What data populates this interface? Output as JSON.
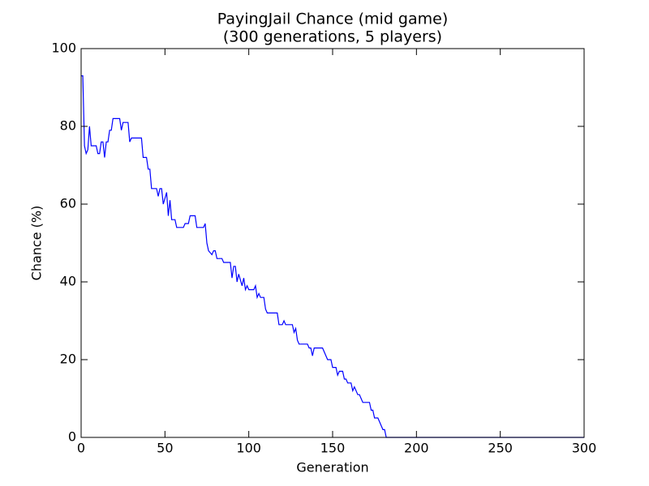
{
  "chart_data": {
    "type": "line",
    "title": "PayingJail Chance (mid game)",
    "subtitle": "(300 generations, 5 players)",
    "x_label": "Generation",
    "y_label": "Chance (%)",
    "x": [
      0,
      1,
      2,
      3,
      4,
      5,
      6,
      9,
      10,
      11,
      12,
      13,
      14,
      15,
      16,
      17,
      18,
      19,
      23,
      24,
      25,
      28,
      29,
      30,
      36,
      37,
      39,
      40,
      41,
      42,
      45,
      46,
      47,
      48,
      49,
      51,
      52,
      53,
      54,
      56,
      57,
      61,
      62,
      64,
      65,
      68,
      69,
      73,
      74,
      75,
      76,
      78,
      79,
      80,
      81,
      84,
      85,
      89,
      90,
      91,
      92,
      93,
      94,
      96,
      97,
      98,
      99,
      100,
      103,
      104,
      105,
      106,
      107,
      109,
      110,
      111,
      117,
      118,
      120,
      121,
      122,
      126,
      127,
      128,
      129,
      130,
      135,
      136,
      137,
      138,
      139,
      144,
      147,
      149,
      150,
      152,
      153,
      154,
      156,
      157,
      158,
      159,
      161,
      162,
      163,
      165,
      166,
      167,
      168,
      172,
      173,
      174,
      175,
      177,
      180,
      181,
      182,
      300
    ],
    "series": [
      {
        "name": "PayingJail",
        "color": "#0000ff",
        "values": [
          93,
          93,
          75,
          73,
          74,
          80,
          75,
          75,
          73,
          73,
          76,
          76,
          72,
          76,
          76,
          79,
          79,
          82,
          82,
          79,
          81,
          81,
          76,
          77,
          77,
          72,
          72,
          69,
          69,
          64,
          64,
          62,
          64,
          64,
          60,
          63,
          57,
          61,
          56,
          56,
          54,
          54,
          55,
          55,
          57,
          57,
          54,
          54,
          55,
          50,
          48,
          47,
          48,
          48,
          46,
          46,
          45,
          45,
          41,
          44,
          44,
          40,
          42,
          39,
          41,
          38,
          39,
          38,
          38,
          39,
          36,
          37,
          36,
          36,
          33,
          32,
          32,
          29,
          29,
          30,
          29,
          29,
          27,
          28,
          25,
          24,
          24,
          23,
          23,
          21,
          23,
          23,
          20,
          20,
          18,
          18,
          16,
          17,
          17,
          15,
          15,
          14,
          14,
          12,
          13,
          11,
          11,
          10,
          9,
          9,
          7,
          7,
          5,
          5,
          2,
          2,
          0,
          0
        ]
      }
    ],
    "xlim": [
      0,
      300
    ],
    "xticks": [
      0,
      50,
      100,
      150,
      200,
      250,
      300
    ],
    "ylim": [
      0,
      100
    ],
    "yticks": [
      0,
      20,
      40,
      60,
      80,
      100
    ]
  }
}
